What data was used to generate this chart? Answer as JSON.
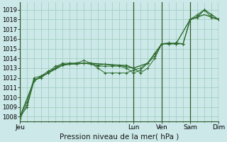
{
  "xlabel": "Pression niveau de la mer( hPa )",
  "background_color": "#cce8e8",
  "grid_color": "#99ccbb",
  "line_color": "#2d6b2d",
  "ylim": [
    1007.5,
    1019.8
  ],
  "xlim": [
    0,
    168
  ],
  "x_ticks": [
    0,
    96,
    120,
    144,
    168
  ],
  "x_tick_labels": [
    "Jeu",
    "Lun",
    "Ven",
    "Sam",
    "Dim"
  ],
  "y_ticks": [
    1008,
    1009,
    1010,
    1011,
    1012,
    1013,
    1014,
    1015,
    1016,
    1017,
    1018,
    1019
  ],
  "vlines": [
    0,
    96,
    120,
    144,
    168
  ],
  "series": [
    {
      "x": [
        0,
        6,
        12,
        18,
        24,
        30,
        36,
        42,
        48,
        54,
        60,
        66,
        72,
        78,
        84,
        90,
        96,
        102,
        108,
        114,
        120,
        126,
        132,
        138,
        144,
        150,
        156,
        162,
        168
      ],
      "y": [
        1008.0,
        1009.0,
        1011.7,
        1012.2,
        1012.5,
        1013.0,
        1013.3,
        1013.5,
        1013.5,
        1013.8,
        1013.5,
        1013.3,
        1013.4,
        1013.3,
        1013.3,
        1013.3,
        1013.0,
        1012.5,
        1013.0,
        1014.0,
        1015.5,
        1015.5,
        1015.6,
        1015.5,
        1018.0,
        1018.5,
        1019.0,
        1018.5,
        1018.0
      ],
      "marker": "+"
    },
    {
      "x": [
        0,
        6,
        12,
        18,
        24,
        30,
        36,
        42,
        48,
        54,
        60,
        66,
        72,
        78,
        84,
        90,
        96,
        102,
        108,
        114,
        120,
        126,
        132,
        138,
        144,
        150,
        156,
        162,
        168
      ],
      "y": [
        1007.8,
        1009.2,
        1011.8,
        1012.0,
        1012.6,
        1013.2,
        1013.4,
        1013.4,
        1013.4,
        1013.5,
        1013.4,
        1013.2,
        1013.2,
        1013.2,
        1013.2,
        1013.0,
        1012.5,
        1012.8,
        1013.5,
        1014.2,
        1015.5,
        1015.6,
        1015.5,
        1015.5,
        1018.0,
        1018.3,
        1019.0,
        1018.2,
        1018.0
      ],
      "marker": "+"
    },
    {
      "x": [
        0,
        12,
        24,
        36,
        48,
        60,
        72,
        84,
        96,
        108,
        120,
        132,
        144,
        156,
        168
      ],
      "y": [
        1008.0,
        1011.7,
        1012.5,
        1013.3,
        1013.5,
        1013.5,
        1013.4,
        1013.3,
        1013.0,
        1013.5,
        1015.5,
        1015.5,
        1018.0,
        1018.5,
        1018.0
      ],
      "marker": null
    },
    {
      "x": [
        0,
        6,
        12,
        18,
        24,
        30,
        36,
        42,
        48,
        54,
        60,
        66,
        72,
        78,
        84,
        90,
        96,
        102,
        108,
        114,
        120,
        126,
        132,
        138,
        144,
        150,
        156,
        162,
        168
      ],
      "y": [
        1008.0,
        1009.5,
        1012.0,
        1012.2,
        1012.7,
        1013.0,
        1013.5,
        1013.5,
        1013.5,
        1013.5,
        1013.5,
        1013.0,
        1012.5,
        1012.5,
        1012.5,
        1012.5,
        1012.8,
        1013.0,
        1013.5,
        1014.5,
        1015.5,
        1015.5,
        1015.5,
        1015.5,
        1018.0,
        1018.2,
        1019.0,
        1018.5,
        1018.0
      ],
      "marker": "+"
    }
  ]
}
